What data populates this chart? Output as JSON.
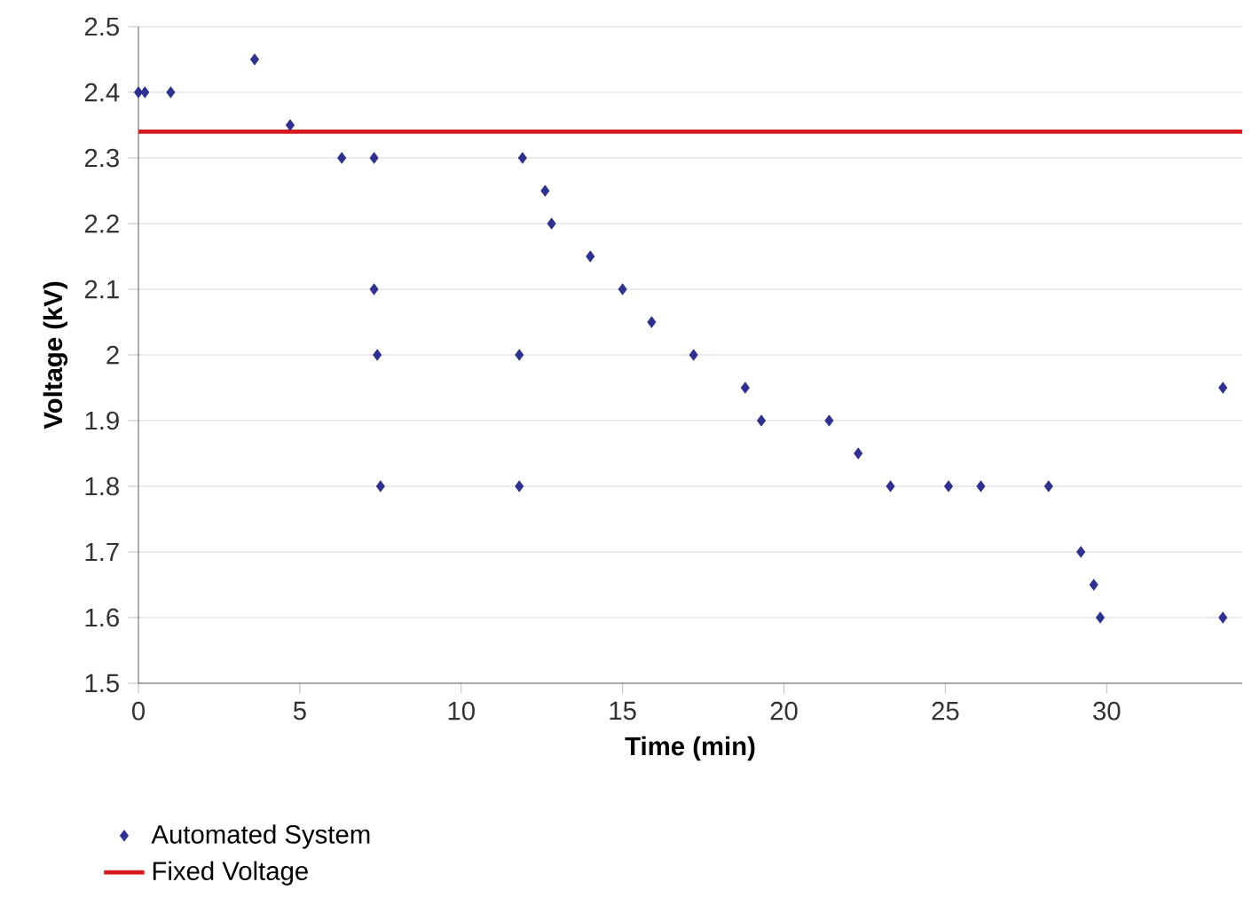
{
  "chart_data": {
    "type": "scatter",
    "xlabel": "Time (min)",
    "ylabel": "Voltage (kV)",
    "xlim": [
      0,
      34.2
    ],
    "xticks": [
      0,
      5,
      10,
      15,
      20,
      25,
      30
    ],
    "ylim": [
      1.5,
      2.5
    ],
    "yticks": [
      1.5,
      1.6,
      1.7,
      1.8,
      1.9,
      2,
      2.1,
      2.2,
      2.3,
      2.4,
      2.5
    ],
    "grid": "y",
    "legend": "bottom left",
    "series": [
      {
        "name": "Automated System",
        "color": "#2e3192",
        "marker": "diamond",
        "x": [
          0,
          0.2,
          1.0,
          3.6,
          4.7,
          6.3,
          7.3,
          7.3,
          7.4,
          7.5,
          11.9,
          11.8,
          11.8,
          12.6,
          12.8,
          14.0,
          15.0,
          15.9,
          17.2,
          18.8,
          19.3,
          21.4,
          22.3,
          23.3,
          25.1,
          26.1,
          28.2,
          29.2,
          29.6,
          29.8,
          33.6,
          33.6
        ],
        "values": [
          2.4,
          2.4,
          2.4,
          2.45,
          2.35,
          2.3,
          2.3,
          2.1,
          2.0,
          1.8,
          2.3,
          2.0,
          1.8,
          2.25,
          2.2,
          2.15,
          2.1,
          2.05,
          2.0,
          1.95,
          1.9,
          1.9,
          1.85,
          1.8,
          1.8,
          1.8,
          1.8,
          1.7,
          1.65,
          1.6,
          1.6,
          1.95
        ]
      },
      {
        "name": "Fixed Voltage",
        "color": "#d7191c",
        "type": "line",
        "line_style": "solid",
        "x": [
          0,
          34.2
        ],
        "values": [
          2.34,
          2.34
        ]
      }
    ]
  }
}
